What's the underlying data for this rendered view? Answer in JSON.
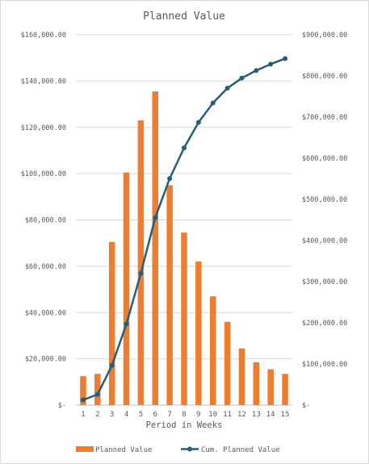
{
  "chart_data": {
    "type": "bar+line",
    "title": "Planned Value",
    "xlabel": "Period in Weeks",
    "categories": [
      "1",
      "2",
      "3",
      "4",
      "5",
      "6",
      "7",
      "8",
      "9",
      "10",
      "11",
      "12",
      "13",
      "14",
      "15"
    ],
    "series": [
      {
        "name": "Planned  Value",
        "type": "bar",
        "axis": "left",
        "color": "#ed7d31",
        "values": [
          12500,
          13500,
          70500,
          100500,
          123000,
          135500,
          95000,
          74500,
          62000,
          47000,
          36000,
          24500,
          18500,
          15500,
          13500
        ]
      },
      {
        "name": "Cum. Planned  Value",
        "type": "line",
        "axis": "right",
        "color": "#255e79",
        "values": [
          12500,
          26000,
          96500,
          197000,
          320000,
          455500,
          550500,
          625000,
          687000,
          734000,
          770000,
          794500,
          813000,
          828500,
          842000
        ]
      }
    ],
    "y_left": {
      "ylim": [
        0,
        160000
      ],
      "tick_labels": [
        "$-",
        "$20,000.00",
        "$40,000.00",
        "$60,000.00",
        "$80,000.00",
        "$100,000.00",
        "$120,000.00",
        "$140,000.00",
        "$160,000.00"
      ]
    },
    "y_right": {
      "ylim": [
        0,
        900000
      ],
      "tick_labels": [
        "$-",
        "$100,000.00",
        "$200,000.00",
        "$300,000.00",
        "$400,000.00",
        "$500,000.00",
        "$600,000.00",
        "$700,000.00",
        "$800,000.00",
        "$900,000.00"
      ]
    },
    "grid": true,
    "legend_position": "bottom"
  }
}
